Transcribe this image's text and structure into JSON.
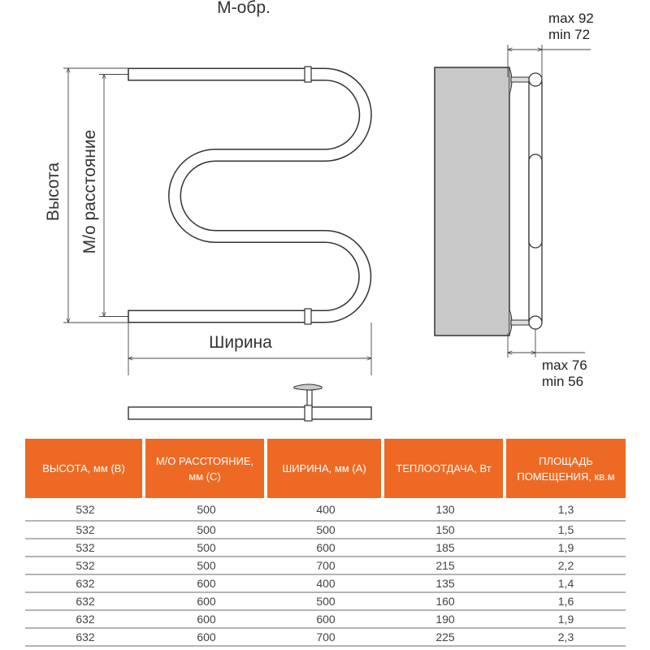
{
  "title": "М-обр.",
  "dimensions": {
    "height_label": "Высота",
    "center_distance_label": "М/о расстояние",
    "width_label": "Ширина",
    "top_offset": [
      "max 92",
      "min 72"
    ],
    "bottom_offset": [
      "max 76",
      "min 56"
    ]
  },
  "colors": {
    "header_bg": "#ee6a24",
    "wall": "#c8c8c8"
  },
  "table": {
    "headers": [
      "ВЫСОТА, мм (В)",
      "М/О РАССТОЯНИЕ, мм (С)",
      "ШИРИНА, мм (А)",
      "ТЕПЛООТДАЧА, Вт",
      "ПЛОЩАДЬ ПОМЕЩЕНИЯ, кв.м"
    ],
    "rows": [
      [
        "532",
        "500",
        "400",
        "130",
        "1,3"
      ],
      [
        "532",
        "500",
        "500",
        "150",
        "1,5"
      ],
      [
        "532",
        "500",
        "600",
        "185",
        "1,9"
      ],
      [
        "532",
        "500",
        "700",
        "215",
        "2,2"
      ],
      [
        "632",
        "600",
        "400",
        "135",
        "1,4"
      ],
      [
        "632",
        "600",
        "500",
        "160",
        "1,6"
      ],
      [
        "632",
        "600",
        "600",
        "190",
        "1,9"
      ],
      [
        "632",
        "600",
        "700",
        "225",
        "2,3"
      ]
    ]
  }
}
